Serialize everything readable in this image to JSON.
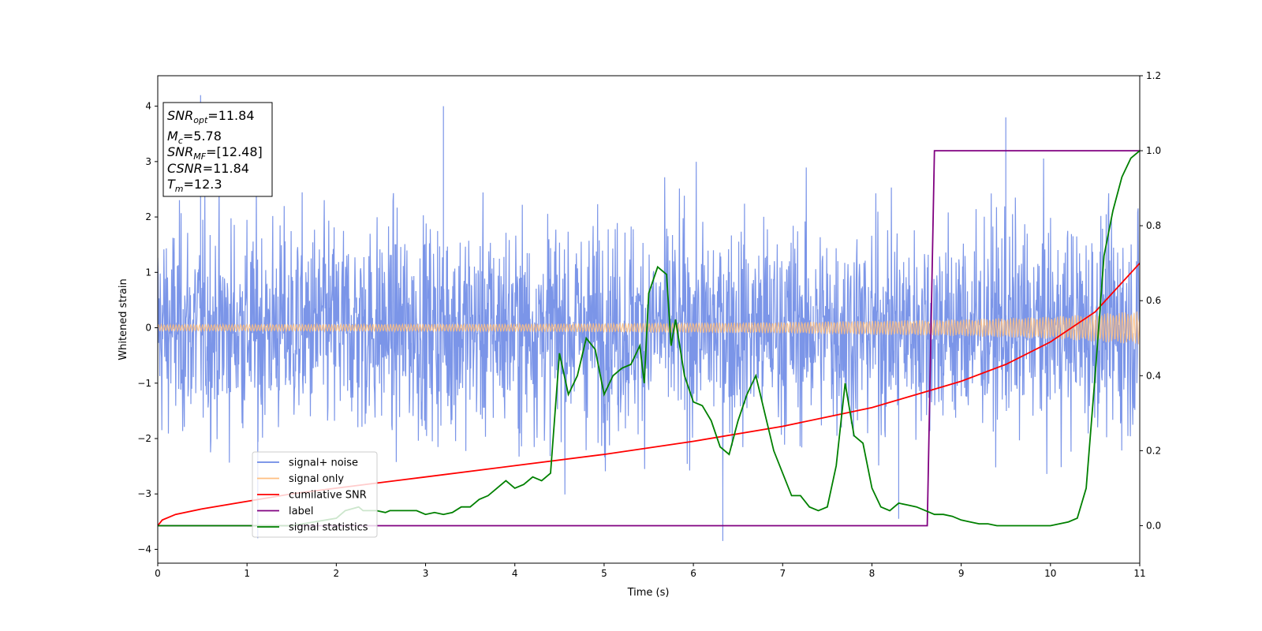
{
  "chart_data": {
    "type": "line",
    "xlabel": "Time (s)",
    "ylabel": "Whitened strain",
    "xlim": [
      0,
      11
    ],
    "ylim": [
      -4.25,
      4.55
    ],
    "y2lim": [
      -0.1,
      1.2
    ],
    "xticks": [
      "0",
      "1",
      "2",
      "3",
      "4",
      "5",
      "6",
      "7",
      "8",
      "9",
      "10",
      "11"
    ],
    "yticks": [
      "4",
      "3",
      "2",
      "1",
      "0",
      "−1",
      "−2",
      "−3",
      "−4"
    ],
    "y2ticks": [
      "0.0",
      "0.2",
      "0.4",
      "0.6",
      "0.8",
      "1.0",
      "1.2"
    ],
    "xtick_values": [
      0,
      1,
      2,
      3,
      4,
      5,
      6,
      7,
      8,
      9,
      10,
      11
    ],
    "ytick_values": [
      4,
      3,
      2,
      1,
      0,
      -1,
      -2,
      -3,
      -4
    ],
    "y2tick_values": [
      0,
      0.2,
      0.4,
      0.6,
      0.8,
      1.0,
      1.2
    ],
    "info_box": {
      "line1_main": "SNR",
      "line1_sub": "opt",
      "line1_rest": "=11.84",
      "line2_main": "M",
      "line2_sub": "c",
      "line2_rest": "=5.78",
      "line3_main": "SNR",
      "line3_sub": "MF",
      "line3_rest": "=[12.48]",
      "line4_main": "CSNR",
      "line4_rest": "=11.84",
      "line5_main": "T",
      "line5_sub": "m",
      "line5_rest": "=12.3"
    },
    "legend": {
      "location": "lower left",
      "entries": [
        {
          "label": "signal+ noise",
          "color": "#6d8ae5"
        },
        {
          "label": "signal only",
          "color": "#ffbf80"
        },
        {
          "label": "cumilative SNR",
          "color": "#ff0000"
        },
        {
          "label": "label",
          "color": "#800080"
        },
        {
          "label": "signal statistics",
          "color": "#008000"
        }
      ]
    },
    "series": [
      {
        "name": "signal+ noise",
        "axis": "left",
        "color": "#6d8ae5",
        "note_envelope_upper": [
          [
            0,
            2.7
          ],
          [
            2,
            2.8
          ],
          [
            4,
            2.8
          ],
          [
            6,
            2.8
          ],
          [
            8,
            2.8
          ],
          [
            10,
            2.8
          ],
          [
            11,
            2.9
          ]
        ],
        "note_envelope_lower": [
          [
            0,
            -2.6
          ],
          [
            11,
            -2.7
          ]
        ],
        "spike_peaks": [
          [
            0.48,
            4.2
          ],
          [
            3.2,
            4.0
          ],
          [
            9.5,
            3.8
          ],
          [
            6.33,
            -3.85
          ],
          [
            1.12,
            -3.8
          ],
          [
            8.3,
            -3.45
          ]
        ]
      },
      {
        "name": "signal only",
        "axis": "left",
        "color": "#ffbf80",
        "amplitude": [
          [
            0,
            0.06
          ],
          [
            4,
            0.07
          ],
          [
            7,
            0.1
          ],
          [
            9,
            0.15
          ],
          [
            10,
            0.2
          ],
          [
            11,
            0.3
          ]
        ]
      },
      {
        "name": "cumilative SNR",
        "axis": "right",
        "color": "#ff0000",
        "x": [
          0,
          0.05,
          0.2,
          0.5,
          1,
          1.5,
          2,
          3,
          4,
          5,
          6,
          7,
          7.5,
          8,
          8.5,
          9,
          9.5,
          10,
          10.5,
          11
        ],
        "y": [
          0.0,
          0.015,
          0.03,
          0.045,
          0.065,
          0.085,
          0.1,
          0.13,
          0.16,
          0.19,
          0.225,
          0.265,
          0.29,
          0.315,
          0.35,
          0.385,
          0.43,
          0.49,
          0.57,
          0.7
        ]
      },
      {
        "name": "label",
        "axis": "right",
        "color": "#800080",
        "x": [
          0,
          8.62,
          8.7,
          11
        ],
        "y": [
          0,
          0,
          1,
          1
        ]
      },
      {
        "name": "signal statistics",
        "axis": "right",
        "color": "#008000",
        "x": [
          0,
          1,
          1.5,
          2,
          2.1,
          2.25,
          2.3,
          2.45,
          2.55,
          2.6,
          2.7,
          2.8,
          2.9,
          3.0,
          3.1,
          3.2,
          3.3,
          3.4,
          3.5,
          3.6,
          3.7,
          3.8,
          3.9,
          4.0,
          4.1,
          4.2,
          4.3,
          4.4,
          4.5,
          4.6,
          4.7,
          4.8,
          4.9,
          5.0,
          5.1,
          5.2,
          5.3,
          5.4,
          5.45,
          5.5,
          5.6,
          5.7,
          5.75,
          5.8,
          5.9,
          6.0,
          6.1,
          6.2,
          6.3,
          6.4,
          6.5,
          6.6,
          6.7,
          6.8,
          6.9,
          7.0,
          7.1,
          7.2,
          7.3,
          7.4,
          7.5,
          7.6,
          7.7,
          7.8,
          7.9,
          8.0,
          8.1,
          8.2,
          8.3,
          8.4,
          8.5,
          8.6,
          8.7,
          8.8,
          8.9,
          9.0,
          9.1,
          9.2,
          9.3,
          9.4,
          9.5,
          9.6,
          9.7,
          9.8,
          9.9,
          10.0,
          10.1,
          10.2,
          10.3,
          10.4,
          10.5,
          10.6,
          10.7,
          10.8,
          10.9,
          11.0
        ],
        "y": [
          0.0,
          0.0,
          0.0,
          0.02,
          0.04,
          0.05,
          0.04,
          0.04,
          0.035,
          0.04,
          0.04,
          0.04,
          0.04,
          0.03,
          0.035,
          0.03,
          0.035,
          0.05,
          0.05,
          0.07,
          0.08,
          0.1,
          0.12,
          0.1,
          0.11,
          0.13,
          0.12,
          0.14,
          0.46,
          0.35,
          0.4,
          0.5,
          0.47,
          0.35,
          0.4,
          0.42,
          0.43,
          0.48,
          0.38,
          0.62,
          0.69,
          0.67,
          0.48,
          0.55,
          0.4,
          0.33,
          0.32,
          0.28,
          0.21,
          0.19,
          0.28,
          0.35,
          0.4,
          0.3,
          0.2,
          0.14,
          0.08,
          0.08,
          0.05,
          0.04,
          0.05,
          0.16,
          0.38,
          0.24,
          0.22,
          0.1,
          0.05,
          0.04,
          0.06,
          0.055,
          0.05,
          0.04,
          0.03,
          0.03,
          0.025,
          0.015,
          0.01,
          0.005,
          0.005,
          0.0,
          0.0,
          0.0,
          0.0,
          0.0,
          0.0,
          0.0,
          0.005,
          0.01,
          0.02,
          0.1,
          0.4,
          0.72,
          0.84,
          0.93,
          0.98,
          1.0
        ]
      }
    ]
  }
}
